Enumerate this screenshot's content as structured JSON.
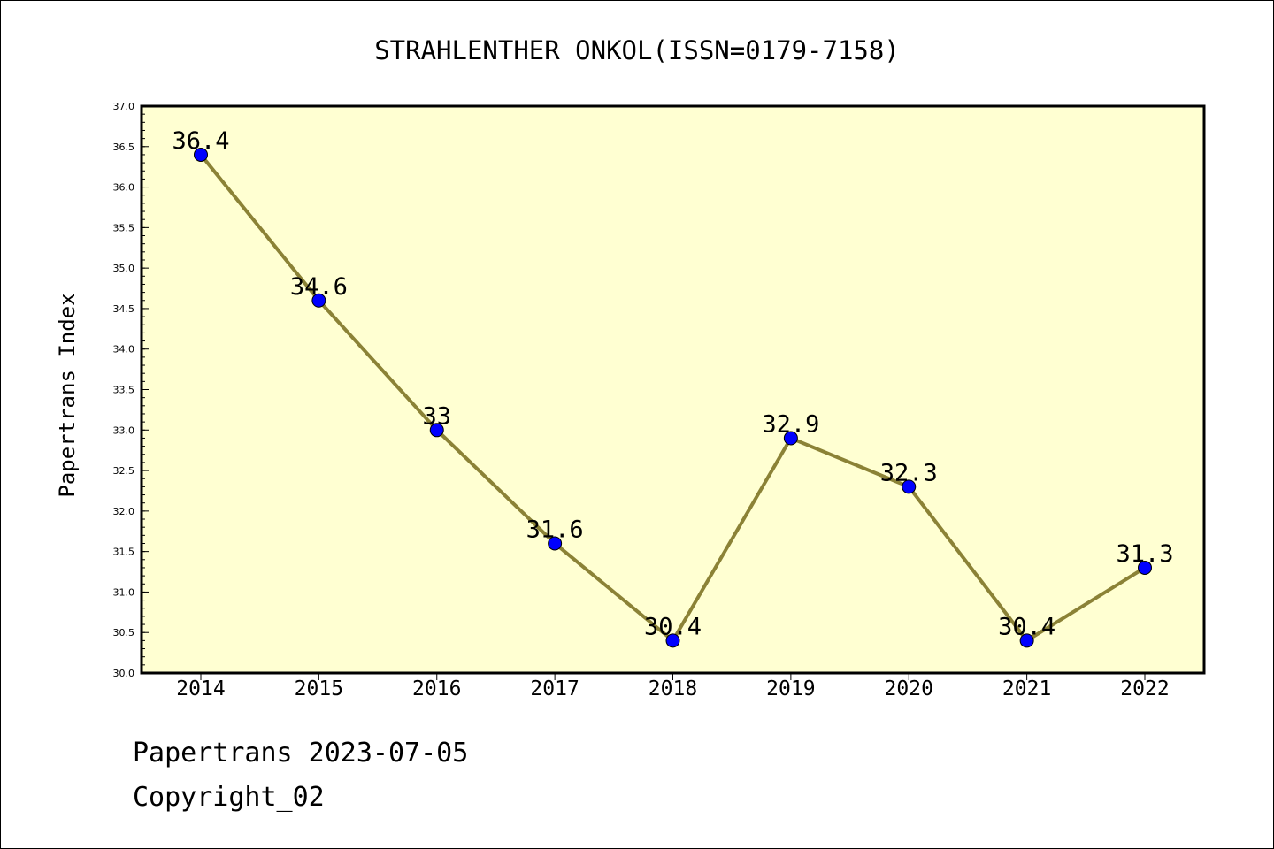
{
  "chart_data": {
    "type": "line",
    "title": "STRAHLENTHER ONKOL(ISSN=0179-7158)",
    "xlabel": "",
    "ylabel": "Papertrans Index",
    "categories": [
      "2014",
      "2015",
      "2016",
      "2017",
      "2018",
      "2019",
      "2020",
      "2021",
      "2022"
    ],
    "series": [
      {
        "values": [
          36.4,
          34.6,
          33,
          31.6,
          30.4,
          32.9,
          32.3,
          30.4,
          31.3
        ],
        "labels": [
          "36.4",
          "34.6",
          "33",
          "31.6",
          "30.4",
          "32.9",
          "32.3",
          "30.4",
          "31.3"
        ]
      }
    ],
    "ylim": [
      30.0,
      37.0
    ],
    "yticks": [
      "30.0",
      "30.5",
      "31.0",
      "31.5",
      "32.0",
      "32.5",
      "33.0",
      "33.5",
      "34.0",
      "34.5",
      "35.0",
      "35.5",
      "36.0",
      "36.5",
      "37.0"
    ],
    "grid": false,
    "colors": {
      "plot_background": "#ffffd2",
      "line": "#8b8236",
      "marker": "#0000ff"
    }
  },
  "footer": {
    "line1": "Papertrans 2023-07-05",
    "line2": "Copyright_02"
  }
}
